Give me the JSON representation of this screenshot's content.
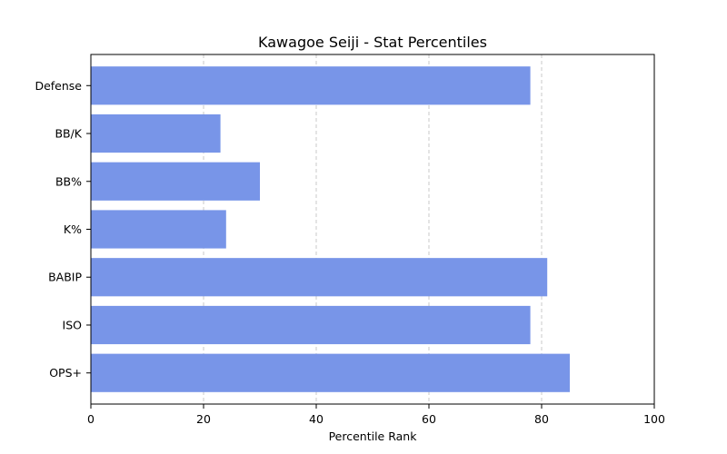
{
  "chart_data": {
    "type": "bar",
    "orientation": "horizontal",
    "title": "Kawagoe Seiji - Stat Percentiles",
    "xlabel": "Percentile Rank",
    "ylabel": "",
    "xlim": [
      0,
      100
    ],
    "xticks": [
      "0",
      "20",
      "40",
      "60",
      "80",
      "100"
    ],
    "categories": [
      "OPS+",
      "ISO",
      "BABIP",
      "K%",
      "BB%",
      "BB/K",
      "Defense"
    ],
    "values": [
      85,
      78,
      81,
      24,
      30,
      23,
      78
    ],
    "bar_color": "#7895e8",
    "grid": "x-dashed"
  }
}
